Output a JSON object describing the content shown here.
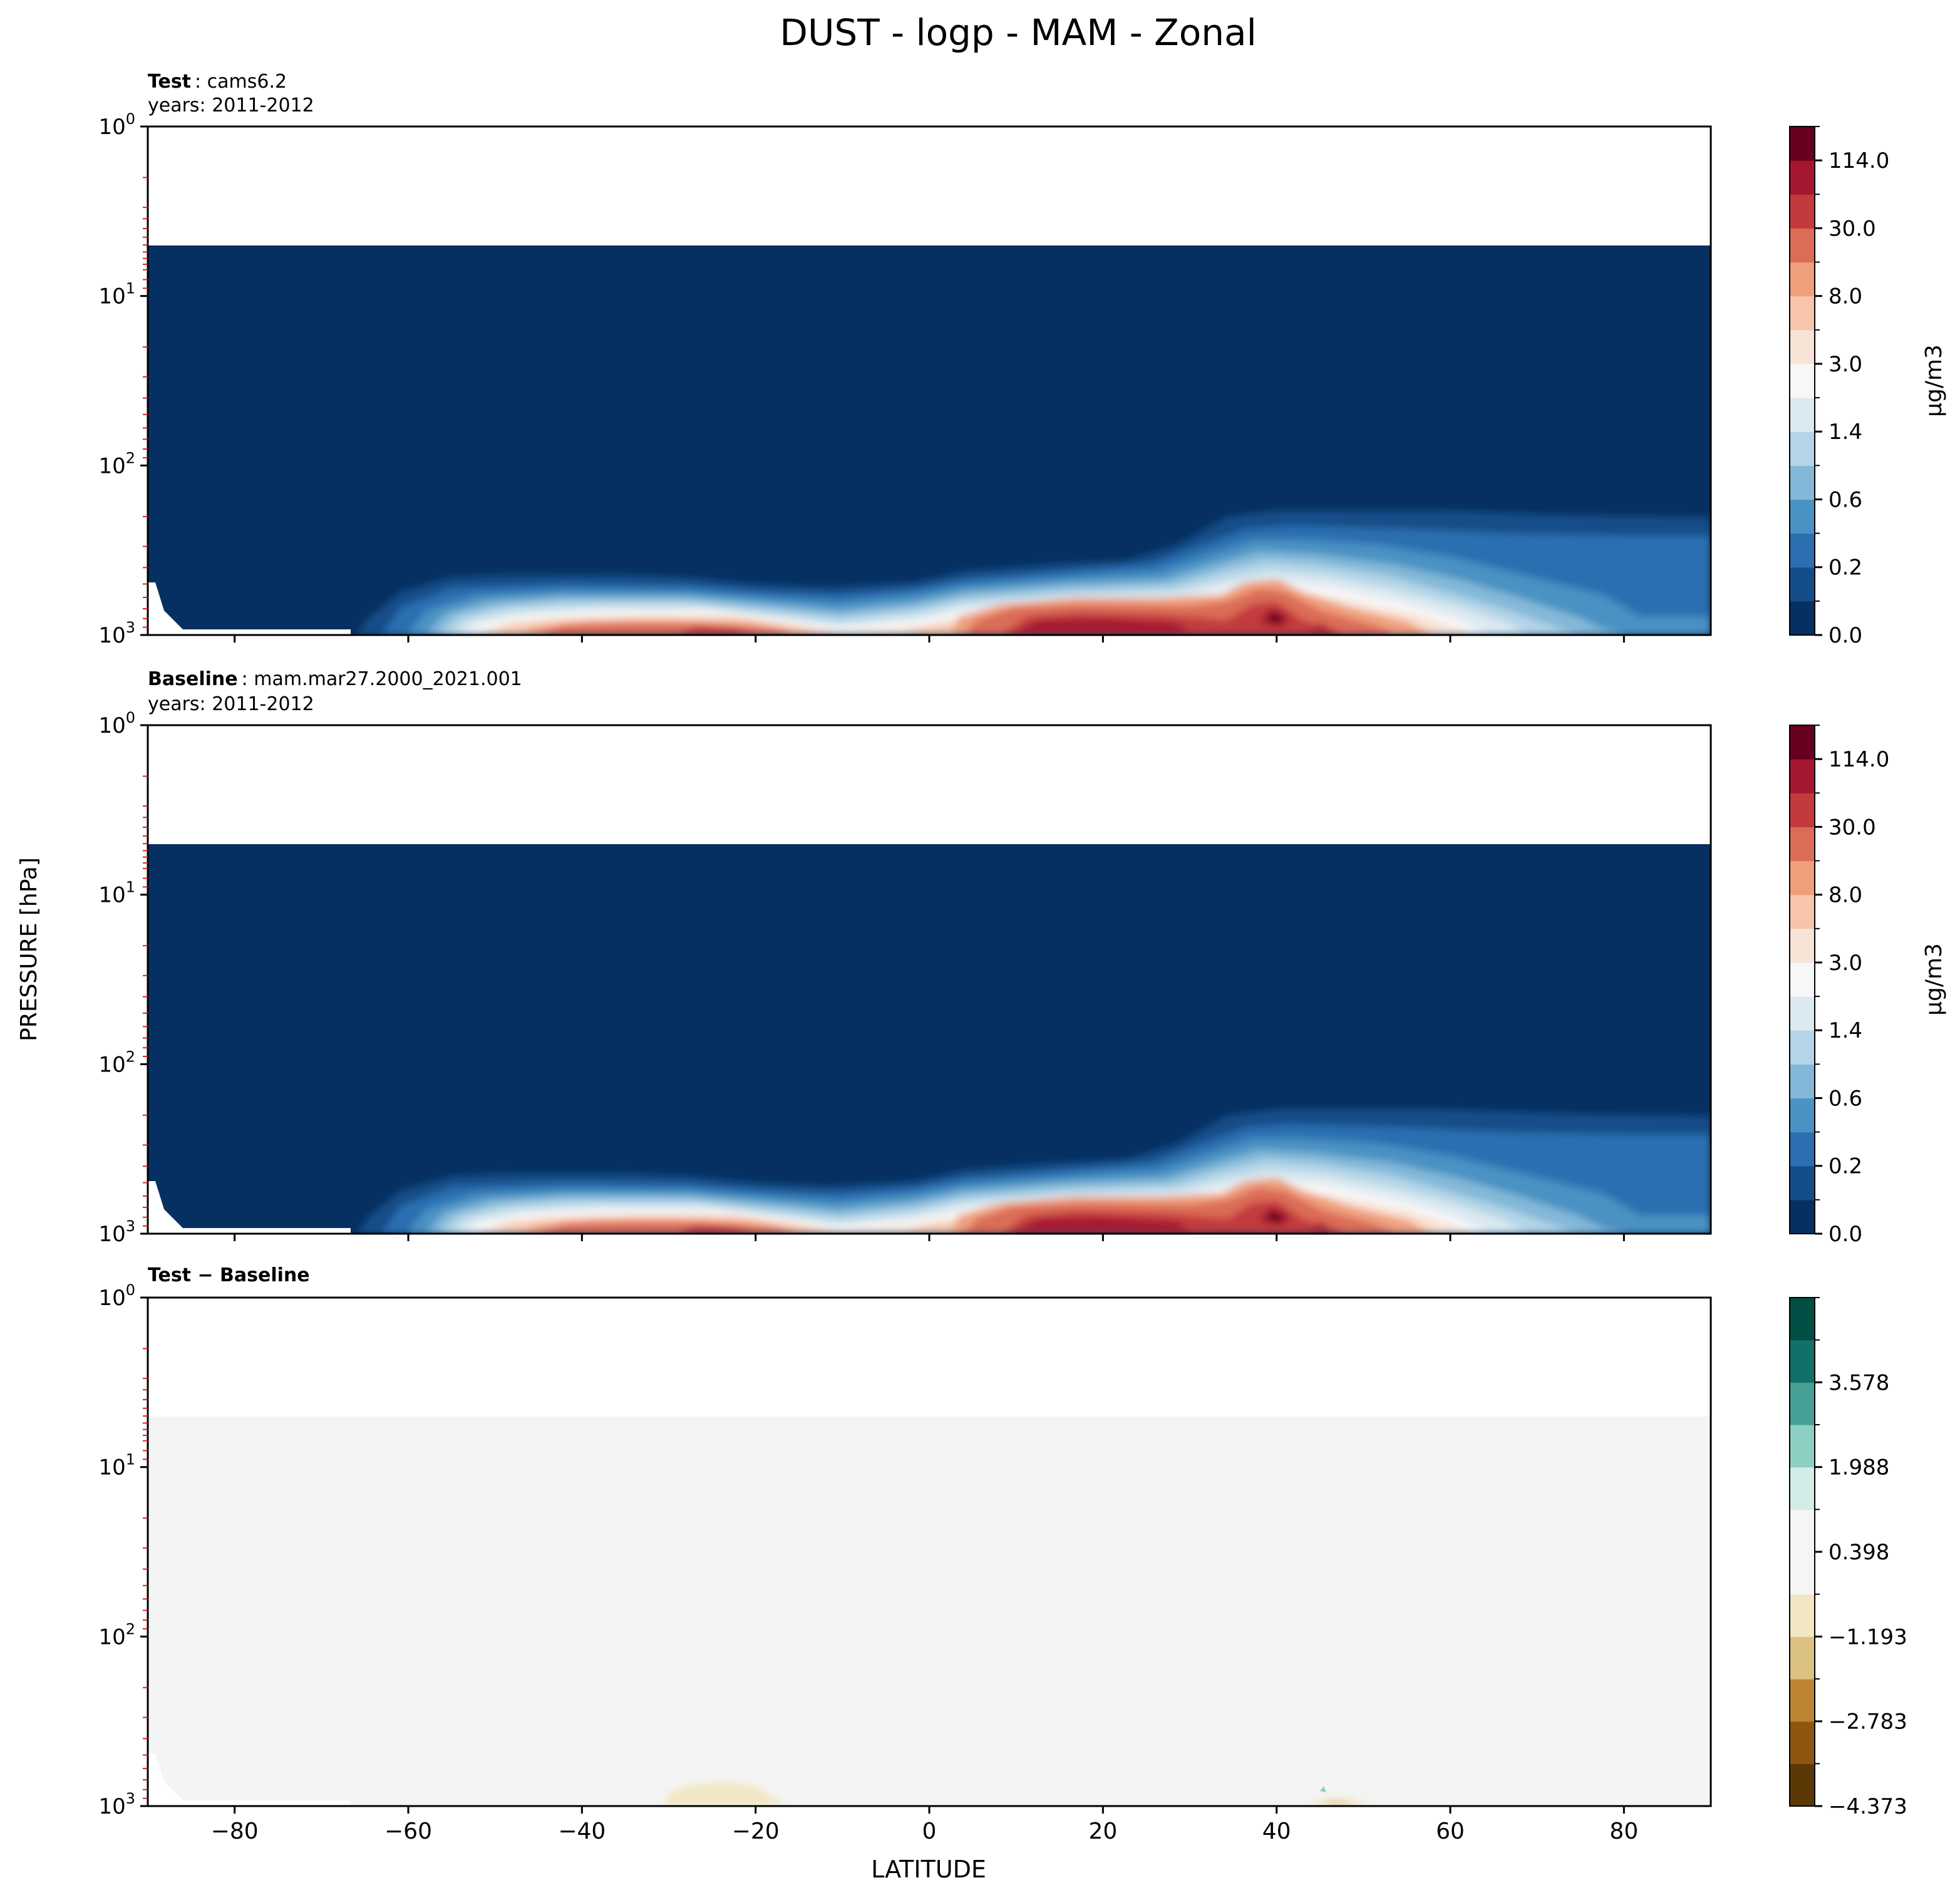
{
  "figure": {
    "title": "DUST - logp - MAM - Zonal",
    "ylabel": "PRESSURE [hPa]",
    "xlabel": "LATITUDE"
  },
  "chart_data": [
    {
      "type": "heatmap",
      "name": "test-panel",
      "label_bold": "Test",
      "label_rest": ": cams6.2",
      "years": "years: 2011-2012",
      "xlim": [
        -90,
        90
      ],
      "ylim_log_hpa": [
        1000,
        1
      ],
      "y_ticks": [
        "10^0",
        "10^1",
        "10^2",
        "10^3"
      ],
      "x_ticks": [
        "−80",
        "−60",
        "−40",
        "−20",
        "0",
        "20",
        "40",
        "60",
        "80"
      ],
      "x_tick_values": [
        -80,
        -60,
        -40,
        -20,
        0,
        20,
        40,
        60,
        80
      ],
      "data_top_hpa": 4.5,
      "colorbar": {
        "labels": [
          "0.0",
          "0.2",
          "0.6",
          "1.4",
          "3.0",
          "8.0",
          "30.0",
          "114.0"
        ],
        "unit": "μg/m3",
        "colors": [
          "#053061",
          "#144d89",
          "#2c6fb0",
          "#4a92c3",
          "#83b8d8",
          "#b4d5e7",
          "#dbe9f1",
          "#f7f7f7",
          "#f8e3d7",
          "#f8c5aa",
          "#f09f7d",
          "#db6c56",
          "#c33a3c",
          "#a51630",
          "#67001f"
        ]
      }
    },
    {
      "type": "heatmap",
      "name": "baseline-panel",
      "label_bold": "Baseline",
      "label_rest": ": mam.mar27.2000_2021.001",
      "years": "years: 2011-2012",
      "xlim": [
        -90,
        90
      ],
      "ylim_log_hpa": [
        1000,
        1
      ],
      "y_ticks": [
        "10^0",
        "10^1",
        "10^2",
        "10^3"
      ],
      "data_top_hpa": 4.5,
      "colorbar": {
        "labels": [
          "0.0",
          "0.2",
          "0.6",
          "1.4",
          "3.0",
          "8.0",
          "30.0",
          "114.0"
        ],
        "unit": "μg/m3"
      }
    },
    {
      "type": "heatmap",
      "name": "difference-panel",
      "label": "Test − Baseline",
      "xlim": [
        -90,
        90
      ],
      "ylim_log_hpa": [
        1000,
        1
      ],
      "y_ticks": [
        "10^0",
        "10^1",
        "10^2",
        "10^3"
      ],
      "data_top_hpa": 4.5,
      "colorbar": {
        "labels": [
          "−4.373",
          "−2.783",
          "−1.193",
          "0.398",
          "1.988",
          "3.578"
        ],
        "colors": [
          "#5b3805",
          "#8e5611",
          "#bd8433",
          "#dcc281",
          "#f2e6c4",
          "#f5f5f5",
          "#f5f5f5",
          "#d2ede8",
          "#8dd0c3",
          "#47a096",
          "#12706a",
          "#004e44"
        ]
      }
    }
  ]
}
